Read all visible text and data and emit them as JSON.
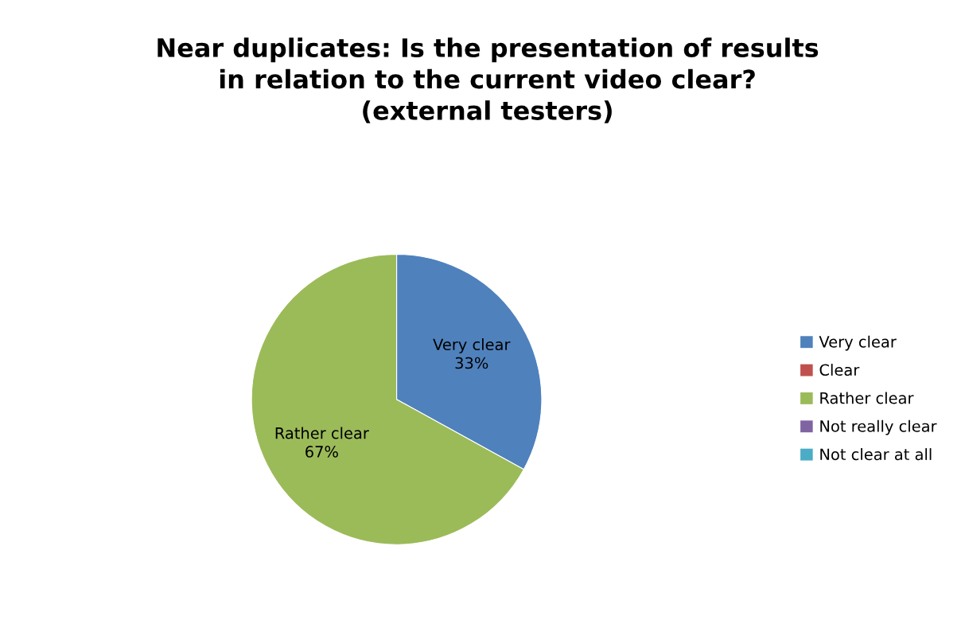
{
  "chart_data": {
    "type": "pie",
    "title": "Near duplicates: Is the presentation of results\nin relation to the current video clear?\n(external testers)",
    "categories": [
      "Very clear",
      "Clear",
      "Rather clear",
      "Not really clear",
      "Not clear at all"
    ],
    "values": [
      33,
      0,
      67,
      0,
      0
    ],
    "colors": [
      "#4f81bd",
      "#c0504d",
      "#9bbb59",
      "#8064a2",
      "#4bacc6"
    ],
    "value_labels": [
      "Very clear\n33%",
      null,
      "Rather clear\n67%",
      null,
      null
    ],
    "legend": "right"
  }
}
